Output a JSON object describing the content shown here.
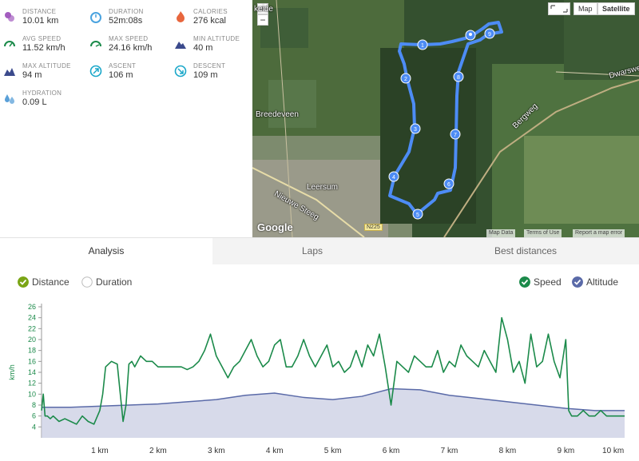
{
  "stats": [
    {
      "label": "DISTANCE",
      "value": "10.01 km",
      "icon": "distance-pin-icon",
      "color": "#a35dbf"
    },
    {
      "label": "DURATION",
      "value": "52m:08s",
      "icon": "stopwatch-icon",
      "color": "#4aa3df"
    },
    {
      "label": "CALORIES",
      "value": "276 kcal",
      "icon": "flame-icon",
      "color": "#e8663d"
    },
    {
      "label": "AVG SPEED",
      "value": "11.52 km/h",
      "icon": "gauge-icon",
      "color": "#1b8a4a"
    },
    {
      "label": "MAX SPEED",
      "value": "24.16 km/h",
      "icon": "gauge-max-icon",
      "color": "#1b8a4a"
    },
    {
      "label": "MIN ALTITUDE",
      "value": "40 m",
      "icon": "mountain-icon",
      "color": "#3b4a8c"
    },
    {
      "label": "MAX ALTITUDE",
      "value": "94 m",
      "icon": "mountain-peak-icon",
      "color": "#3b4a8c"
    },
    {
      "label": "ASCENT",
      "value": "106 m",
      "icon": "ascent-icon",
      "color": "#1aa7c9"
    },
    {
      "label": "DESCENT",
      "value": "109 m",
      "icon": "descent-icon",
      "color": "#1aa7c9"
    },
    {
      "label": "HYDRATION",
      "value": "0.09 L",
      "icon": "water-drops-icon",
      "color": "#5aa0d8"
    }
  ],
  "map": {
    "type_map": "Map",
    "type_satellite": "Satellite",
    "zoom_in": "+",
    "zoom_out": "−",
    "places": {
      "a": "Breedeveen",
      "b": "Leersum",
      "c": "Dwarsweg",
      "d": "Bergweg",
      "e": "Nieuwe Steeg",
      "f": "keide"
    },
    "road_badge": "N225",
    "google": "Google",
    "attrib": {
      "data": "Map Data",
      "terms": "Terms of Use",
      "report": "Report a map error"
    },
    "markers": [
      "1",
      "2",
      "3",
      "4",
      "5",
      "6",
      "7",
      "8",
      "9"
    ],
    "route_color": "#4d8cf5"
  },
  "tabs": {
    "analysis": "Analysis",
    "laps": "Laps",
    "best": "Best distances"
  },
  "toggles": {
    "distance": {
      "label": "Distance",
      "checked": true,
      "color": "#7aa515"
    },
    "duration": {
      "label": "Duration",
      "checked": false
    },
    "speed": {
      "label": "Speed",
      "checked": true,
      "color": "#1b8a4a"
    },
    "altitude": {
      "label": "Altitude",
      "checked": true,
      "color": "#5a6aa8"
    }
  },
  "chart_data": {
    "type": "line",
    "ylabel": "km/h",
    "ylim": [
      2,
      26
    ],
    "yticks": [
      4,
      6,
      8,
      10,
      12,
      14,
      16,
      18,
      20,
      22,
      24,
      26
    ],
    "xlim": [
      0,
      10.01
    ],
    "xticks": [
      "1 km",
      "2 km",
      "3 km",
      "4 km",
      "5 km",
      "6 km",
      "7 km",
      "8 km",
      "9 km",
      "10 km"
    ],
    "series": [
      {
        "name": "Speed",
        "color": "#1b8a4a",
        "x": [
          0,
          0.03,
          0.06,
          0.1,
          0.15,
          0.2,
          0.3,
          0.4,
          0.5,
          0.6,
          0.7,
          0.8,
          0.9,
          1.0,
          1.05,
          1.1,
          1.2,
          1.3,
          1.4,
          1.45,
          1.5,
          1.55,
          1.6,
          1.7,
          1.8,
          1.9,
          2.0,
          2.1,
          2.2,
          2.3,
          2.4,
          2.5,
          2.6,
          2.7,
          2.8,
          2.9,
          3.0,
          3.1,
          3.2,
          3.3,
          3.4,
          3.5,
          3.6,
          3.7,
          3.8,
          3.9,
          4.0,
          4.1,
          4.2,
          4.3,
          4.4,
          4.5,
          4.6,
          4.7,
          4.8,
          4.9,
          5.0,
          5.1,
          5.2,
          5.3,
          5.4,
          5.5,
          5.6,
          5.7,
          5.8,
          5.9,
          6.0,
          6.1,
          6.2,
          6.3,
          6.4,
          6.5,
          6.6,
          6.7,
          6.8,
          6.9,
          7.0,
          7.1,
          7.2,
          7.3,
          7.4,
          7.5,
          7.6,
          7.7,
          7.8,
          7.9,
          8.0,
          8.1,
          8.2,
          8.3,
          8.4,
          8.5,
          8.6,
          8.7,
          8.8,
          8.9,
          9.0,
          9.05,
          9.1,
          9.2,
          9.3,
          9.4,
          9.5,
          9.6,
          9.7,
          9.8,
          9.9,
          10.01
        ],
        "y": [
          7,
          10,
          6,
          6,
          5.5,
          6,
          5,
          5.5,
          5,
          4.5,
          6,
          5,
          4.5,
          7,
          10,
          15,
          16,
          15.5,
          5,
          8,
          15.5,
          16,
          15,
          17,
          16,
          16,
          15,
          15,
          15,
          15,
          15,
          14.5,
          15,
          16,
          18,
          21,
          17,
          15,
          13,
          15,
          16,
          18,
          20,
          17,
          15,
          16,
          19,
          20,
          15,
          15,
          17,
          20,
          17,
          15,
          17,
          19,
          15,
          16,
          14,
          15,
          18,
          15,
          19,
          17,
          21,
          15,
          8,
          16,
          15,
          14,
          17,
          16,
          15,
          15,
          18,
          14,
          16,
          15,
          19,
          17,
          16,
          15,
          18,
          16,
          14,
          24,
          20,
          14,
          16,
          12,
          21,
          15,
          16,
          21,
          16,
          13,
          20,
          7,
          6,
          6,
          7,
          6,
          6,
          7,
          6,
          6,
          6,
          6
        ]
      },
      {
        "name": "Altitude",
        "color": "#5a6aa8",
        "x": [
          0,
          0.5,
          1.0,
          1.5,
          2.0,
          2.5,
          3.0,
          3.5,
          4.0,
          4.5,
          5.0,
          5.5,
          6.0,
          6.5,
          7.0,
          7.5,
          8.0,
          8.5,
          9.0,
          9.5,
          10.01
        ],
        "y": [
          7.6,
          7.6,
          7.8,
          8.0,
          8.2,
          8.6,
          9.0,
          9.8,
          10.2,
          9.4,
          9.0,
          9.6,
          11.0,
          10.8,
          9.8,
          9.2,
          8.6,
          8.0,
          7.4,
          7.0,
          7.0
        ]
      }
    ]
  }
}
